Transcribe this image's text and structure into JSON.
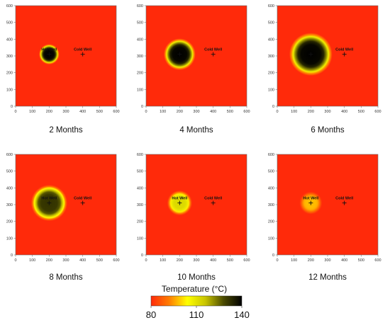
{
  "chart_data": {
    "type": "heatmap",
    "axis": {
      "x_range": [
        0,
        600
      ],
      "y_range": [
        0,
        600
      ],
      "x_ticks": [
        0,
        100,
        200,
        300,
        400,
        500,
        600
      ],
      "y_ticks": [
        0,
        100,
        200,
        300,
        400,
        500,
        600
      ]
    },
    "wells": [
      {
        "label": "Hot Well",
        "x": 200,
        "y": 310
      },
      {
        "label": "Cold Well",
        "x": 400,
        "y": 310
      }
    ],
    "panels": [
      {
        "caption": "2 Months",
        "plume_halfwidth": 45,
        "peak_temperature": 140,
        "show_hot_label": true
      },
      {
        "caption": "4 Months",
        "plume_halfwidth": 70,
        "peak_temperature": 140,
        "show_hot_label": false
      },
      {
        "caption": "6 Months",
        "plume_halfwidth": 95,
        "peak_temperature": 140,
        "show_hot_label": false
      },
      {
        "caption": "8 Months",
        "plume_halfwidth": 80,
        "peak_temperature": 132,
        "show_hot_label": true
      },
      {
        "caption": "10 Months",
        "plume_halfwidth": 55,
        "peak_temperature": 112,
        "show_hot_label": true
      },
      {
        "caption": "12 Months",
        "plume_halfwidth": 50,
        "peak_temperature": 98,
        "show_hot_label": true
      }
    ],
    "colorbar": {
      "title": "Temperature (°C)",
      "min": 80,
      "max": 140,
      "tick_labels": [
        "80",
        "110",
        "140"
      ],
      "tick_values": [
        80,
        110,
        140
      ],
      "colors": [
        "#ff2a0a",
        "#ff7d00",
        "#ffff00",
        "#c8c400",
        "#4a4a00",
        "#000000"
      ]
    },
    "background_temperature": 80,
    "background_color": "#ff2a0a"
  }
}
